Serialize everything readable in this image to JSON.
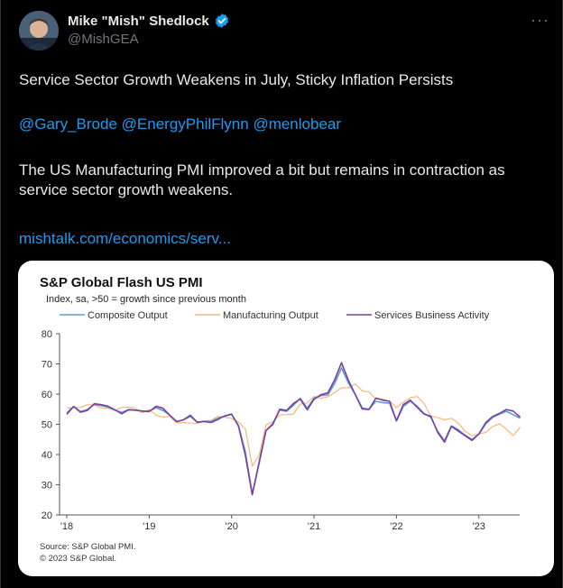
{
  "author": {
    "display_name": "Mike \"Mish\" Shedlock",
    "handle": "@MishGEA",
    "verified_icon": "verified-badge-icon",
    "more_icon": "more-options-icon"
  },
  "tweet": {
    "headline": "Service Sector Growth Weakens in July, Sticky Inflation Persists",
    "mentions": [
      "@Gary_Brode",
      "@EnergyPhilFlynn",
      "@menlobear"
    ],
    "body_line1": "The US Manufacturing PMI improved a bit but remains in contraction as",
    "body_line2": "service sector growth weakens.",
    "link": "mishtalk.com/economics/serv..."
  },
  "colors": {
    "composite": "#5b9bd5",
    "manufacturing": "#f4b77a",
    "services": "#7b3f9e",
    "link": "#1d9bf0"
  },
  "chart_data": {
    "type": "line",
    "title": "S&P Global Flash US PMI",
    "subtitle": "Index, sa, >50 = growth since previous month",
    "source_line1": "Source: S&P Global PMI.",
    "source_line2": "© 2023 S&P Global.",
    "ylim": [
      20,
      80
    ],
    "yticks": [
      20,
      30,
      40,
      50,
      60,
      70,
      80
    ],
    "x_ticks": [
      "'18",
      "'19",
      "'20",
      "'21",
      "'22",
      "'23"
    ],
    "x_start": "2018-01",
    "x_end": "2023-07",
    "legend_position": "top",
    "grid": false,
    "series": [
      {
        "name": "Composite Output",
        "values": [
          53.8,
          55.9,
          54.2,
          54.9,
          56.6,
          56.2,
          55.7,
          54.7,
          53.9,
          54.9,
          54.7,
          54.4,
          54.4,
          55.5,
          54.6,
          53.0,
          50.9,
          51.5,
          52.6,
          50.7,
          51.0,
          50.9,
          52.0,
          52.7,
          53.3,
          49.6,
          40.9,
          27.0,
          37.0,
          47.9,
          50.3,
          54.7,
          54.3,
          56.3,
          58.6,
          55.3,
          58.7,
          59.5,
          59.7,
          63.5,
          68.7,
          63.7,
          59.9,
          55.4,
          55.0,
          57.6,
          57.2,
          57.0,
          51.1,
          55.9,
          57.7,
          56.0,
          53.6,
          52.3,
          47.7,
          44.6,
          49.5,
          48.2,
          46.4,
          45.0,
          46.8,
          50.1,
          52.3,
          53.4,
          54.3,
          53.2,
          52.0
        ],
        "color_key": "composite"
      },
      {
        "name": "Manufacturing Output",
        "values": [
          55.5,
          55.3,
          55.6,
          56.5,
          56.4,
          55.4,
          55.3,
          54.7,
          55.6,
          55.7,
          55.3,
          53.8,
          54.9,
          53.0,
          52.4,
          52.6,
          50.5,
          50.6,
          50.4,
          50.3,
          51.1,
          51.3,
          52.6,
          52.4,
          51.9,
          50.7,
          48.5,
          36.1,
          39.8,
          49.8,
          50.9,
          53.1,
          53.2,
          53.4,
          56.7,
          57.1,
          59.2,
          58.6,
          59.1,
          60.5,
          62.1,
          62.1,
          63.4,
          61.1,
          60.7,
          58.4,
          58.3,
          57.7,
          55.5,
          57.3,
          58.8,
          59.2,
          57.0,
          52.7,
          52.2,
          51.5,
          52.0,
          50.4,
          47.7,
          46.2,
          46.9,
          47.3,
          49.2,
          50.2,
          48.4,
          46.3,
          49.0
        ],
        "color_key": "manufacturing"
      },
      {
        "name": "Services Business Activity",
        "values": [
          53.3,
          55.9,
          54.0,
          54.6,
          56.8,
          56.5,
          56.0,
          54.8,
          53.5,
          54.8,
          54.7,
          54.4,
          54.2,
          56.0,
          55.3,
          53.0,
          50.9,
          51.5,
          53.0,
          50.7,
          50.9,
          50.6,
          51.6,
          52.8,
          53.4,
          49.4,
          39.8,
          26.7,
          37.5,
          47.9,
          50.0,
          55.0,
          54.6,
          56.9,
          58.4,
          54.8,
          58.3,
          59.8,
          60.4,
          64.7,
          70.4,
          64.6,
          59.9,
          55.1,
          54.9,
          58.7,
          58.0,
          57.6,
          51.2,
          56.5,
          58.0,
          55.6,
          53.4,
          52.7,
          47.3,
          44.1,
          49.3,
          47.8,
          46.2,
          44.7,
          46.8,
          50.6,
          52.6,
          53.6,
          54.9,
          54.4,
          52.4
        ],
        "color_key": "services"
      }
    ]
  }
}
